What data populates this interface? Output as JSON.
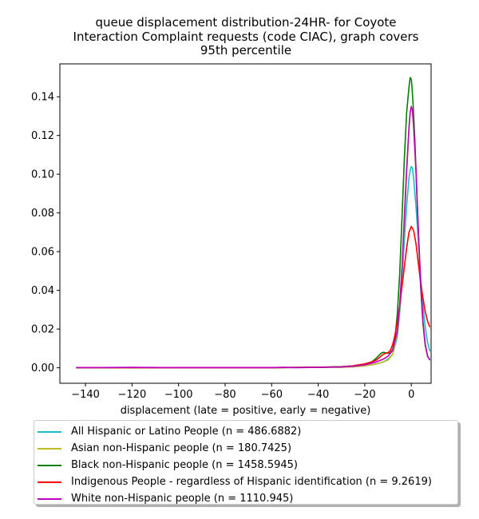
{
  "chart_data": {
    "type": "line",
    "title": "queue displacement distribution-24HR-  for Coyote\nInteraction Complaint  requests (code CIAC), graph covers\n95th percentile",
    "xlabel": "displacement (late = positive, early = negative)",
    "ylabel": "",
    "xlim": [
      -151,
      8.5
    ],
    "ylim": [
      -0.008,
      0.157
    ],
    "xticks": [
      -140,
      -120,
      -100,
      -80,
      -60,
      -40,
      -20,
      0
    ],
    "xtick_labels": [
      "−140",
      "−120",
      "−100",
      "−80",
      "−60",
      "−40",
      "−20",
      "0"
    ],
    "yticks": [
      0.0,
      0.02,
      0.04,
      0.06,
      0.08,
      0.1,
      0.12,
      0.14
    ],
    "ytick_labels": [
      "0.00",
      "0.02",
      "0.04",
      "0.06",
      "0.08",
      "0.10",
      "0.12",
      "0.14"
    ],
    "grid": false,
    "legend_position": "below",
    "series": [
      {
        "name": "All Hispanic or Latino People (n = 486.6882)",
        "color": "#17becf",
        "x": [
          -144,
          -120,
          -100,
          -80,
          -60,
          -40,
          -30,
          -25,
          -20,
          -15,
          -12,
          -10,
          -8,
          -6,
          -5,
          -4,
          -3,
          -2,
          -1,
          -0.5,
          0,
          0.5,
          1,
          2,
          3,
          4,
          5,
          6,
          7,
          8
        ],
        "y": [
          0.0001,
          0.0001,
          0.0001,
          0.0001,
          0.0001,
          0.0002,
          0.0003,
          0.0005,
          0.001,
          0.002,
          0.003,
          0.0045,
          0.007,
          0.016,
          0.028,
          0.045,
          0.066,
          0.084,
          0.098,
          0.102,
          0.104,
          0.103,
          0.098,
          0.083,
          0.066,
          0.047,
          0.032,
          0.021,
          0.013,
          0.0085
        ]
      },
      {
        "name": "Asian non-Hispanic people (n = 180.7425)",
        "color": "#bcbd22",
        "x": [
          -144,
          -120,
          -100,
          -80,
          -60,
          -40,
          -30,
          -25,
          -20,
          -15,
          -12,
          -10,
          -8,
          -6,
          -5,
          -4,
          -3,
          -2,
          -1,
          -0.5,
          0,
          0.5,
          1,
          2,
          3,
          4,
          5,
          6,
          7,
          8
        ],
        "y": [
          0.0001,
          0.0001,
          0.0001,
          0.0001,
          0.0001,
          0.0002,
          0.0003,
          0.0005,
          0.001,
          0.002,
          0.003,
          0.004,
          0.007,
          0.018,
          0.03,
          0.05,
          0.075,
          0.1,
          0.123,
          0.132,
          0.135,
          0.132,
          0.124,
          0.1,
          0.07,
          0.042,
          0.022,
          0.011,
          0.006,
          0.004
        ]
      },
      {
        "name": "Black non-Hispanic people (n = 1458.5945)",
        "color": "#008000",
        "x": [
          -144,
          -120,
          -100,
          -80,
          -60,
          -40,
          -30,
          -25,
          -20,
          -17,
          -15,
          -13,
          -12,
          -11,
          -10,
          -9,
          -8,
          -7,
          -6,
          -5,
          -4,
          -3,
          -2,
          -1,
          -0.5,
          0,
          0.3,
          0.8,
          1.5,
          2,
          3,
          4,
          5,
          6,
          7,
          8
        ],
        "y": [
          0.0001,
          0.0001,
          0.0001,
          0.0001,
          0.0001,
          0.0003,
          0.0006,
          0.001,
          0.002,
          0.003,
          0.005,
          0.0075,
          0.008,
          0.0077,
          0.0075,
          0.0078,
          0.0095,
          0.015,
          0.028,
          0.048,
          0.078,
          0.108,
          0.132,
          0.145,
          0.15,
          0.149,
          0.145,
          0.135,
          0.118,
          0.102,
          0.07,
          0.042,
          0.023,
          0.012,
          0.006,
          0.004
        ]
      },
      {
        "name": "Indigenous People - regardless of Hispanic identification (n = 9.2619)",
        "color": "#ff0000",
        "x": [
          -144,
          -120,
          -100,
          -80,
          -60,
          -40,
          -30,
          -25,
          -20,
          -17,
          -15,
          -13,
          -12,
          -11,
          -10,
          -9,
          -8,
          -7,
          -6,
          -5,
          -4,
          -3,
          -2,
          -1,
          0,
          1,
          2,
          3,
          4,
          5,
          6,
          7,
          8
        ],
        "y": [
          0.0001,
          0.0001,
          0.0001,
          0.0001,
          0.0001,
          0.0003,
          0.0005,
          0.001,
          0.002,
          0.003,
          0.004,
          0.006,
          0.007,
          0.0075,
          0.0078,
          0.009,
          0.012,
          0.017,
          0.024,
          0.032,
          0.042,
          0.052,
          0.062,
          0.07,
          0.073,
          0.071,
          0.064,
          0.054,
          0.044,
          0.036,
          0.029,
          0.024,
          0.021
        ]
      },
      {
        "name": "White non-Hispanic people (n = 1110.945)",
        "color": "#bf00bf",
        "x": [
          -144,
          -120,
          -100,
          -80,
          -60,
          -55,
          -50,
          -40,
          -30,
          -25,
          -20,
          -15,
          -12,
          -10,
          -8,
          -6,
          -5,
          -4,
          -3,
          -2,
          -1,
          -0.5,
          0,
          0.5,
          1,
          2,
          3,
          4,
          5,
          6,
          7,
          8
        ],
        "y": [
          0.0001,
          0.0002,
          0.0001,
          0.0001,
          0.0001,
          0.0003,
          0.0001,
          0.0002,
          0.0004,
          0.0008,
          0.0015,
          0.003,
          0.0045,
          0.006,
          0.009,
          0.019,
          0.032,
          0.052,
          0.078,
          0.103,
          0.124,
          0.132,
          0.135,
          0.133,
          0.125,
          0.102,
          0.072,
          0.044,
          0.024,
          0.012,
          0.006,
          0.004
        ]
      }
    ]
  }
}
